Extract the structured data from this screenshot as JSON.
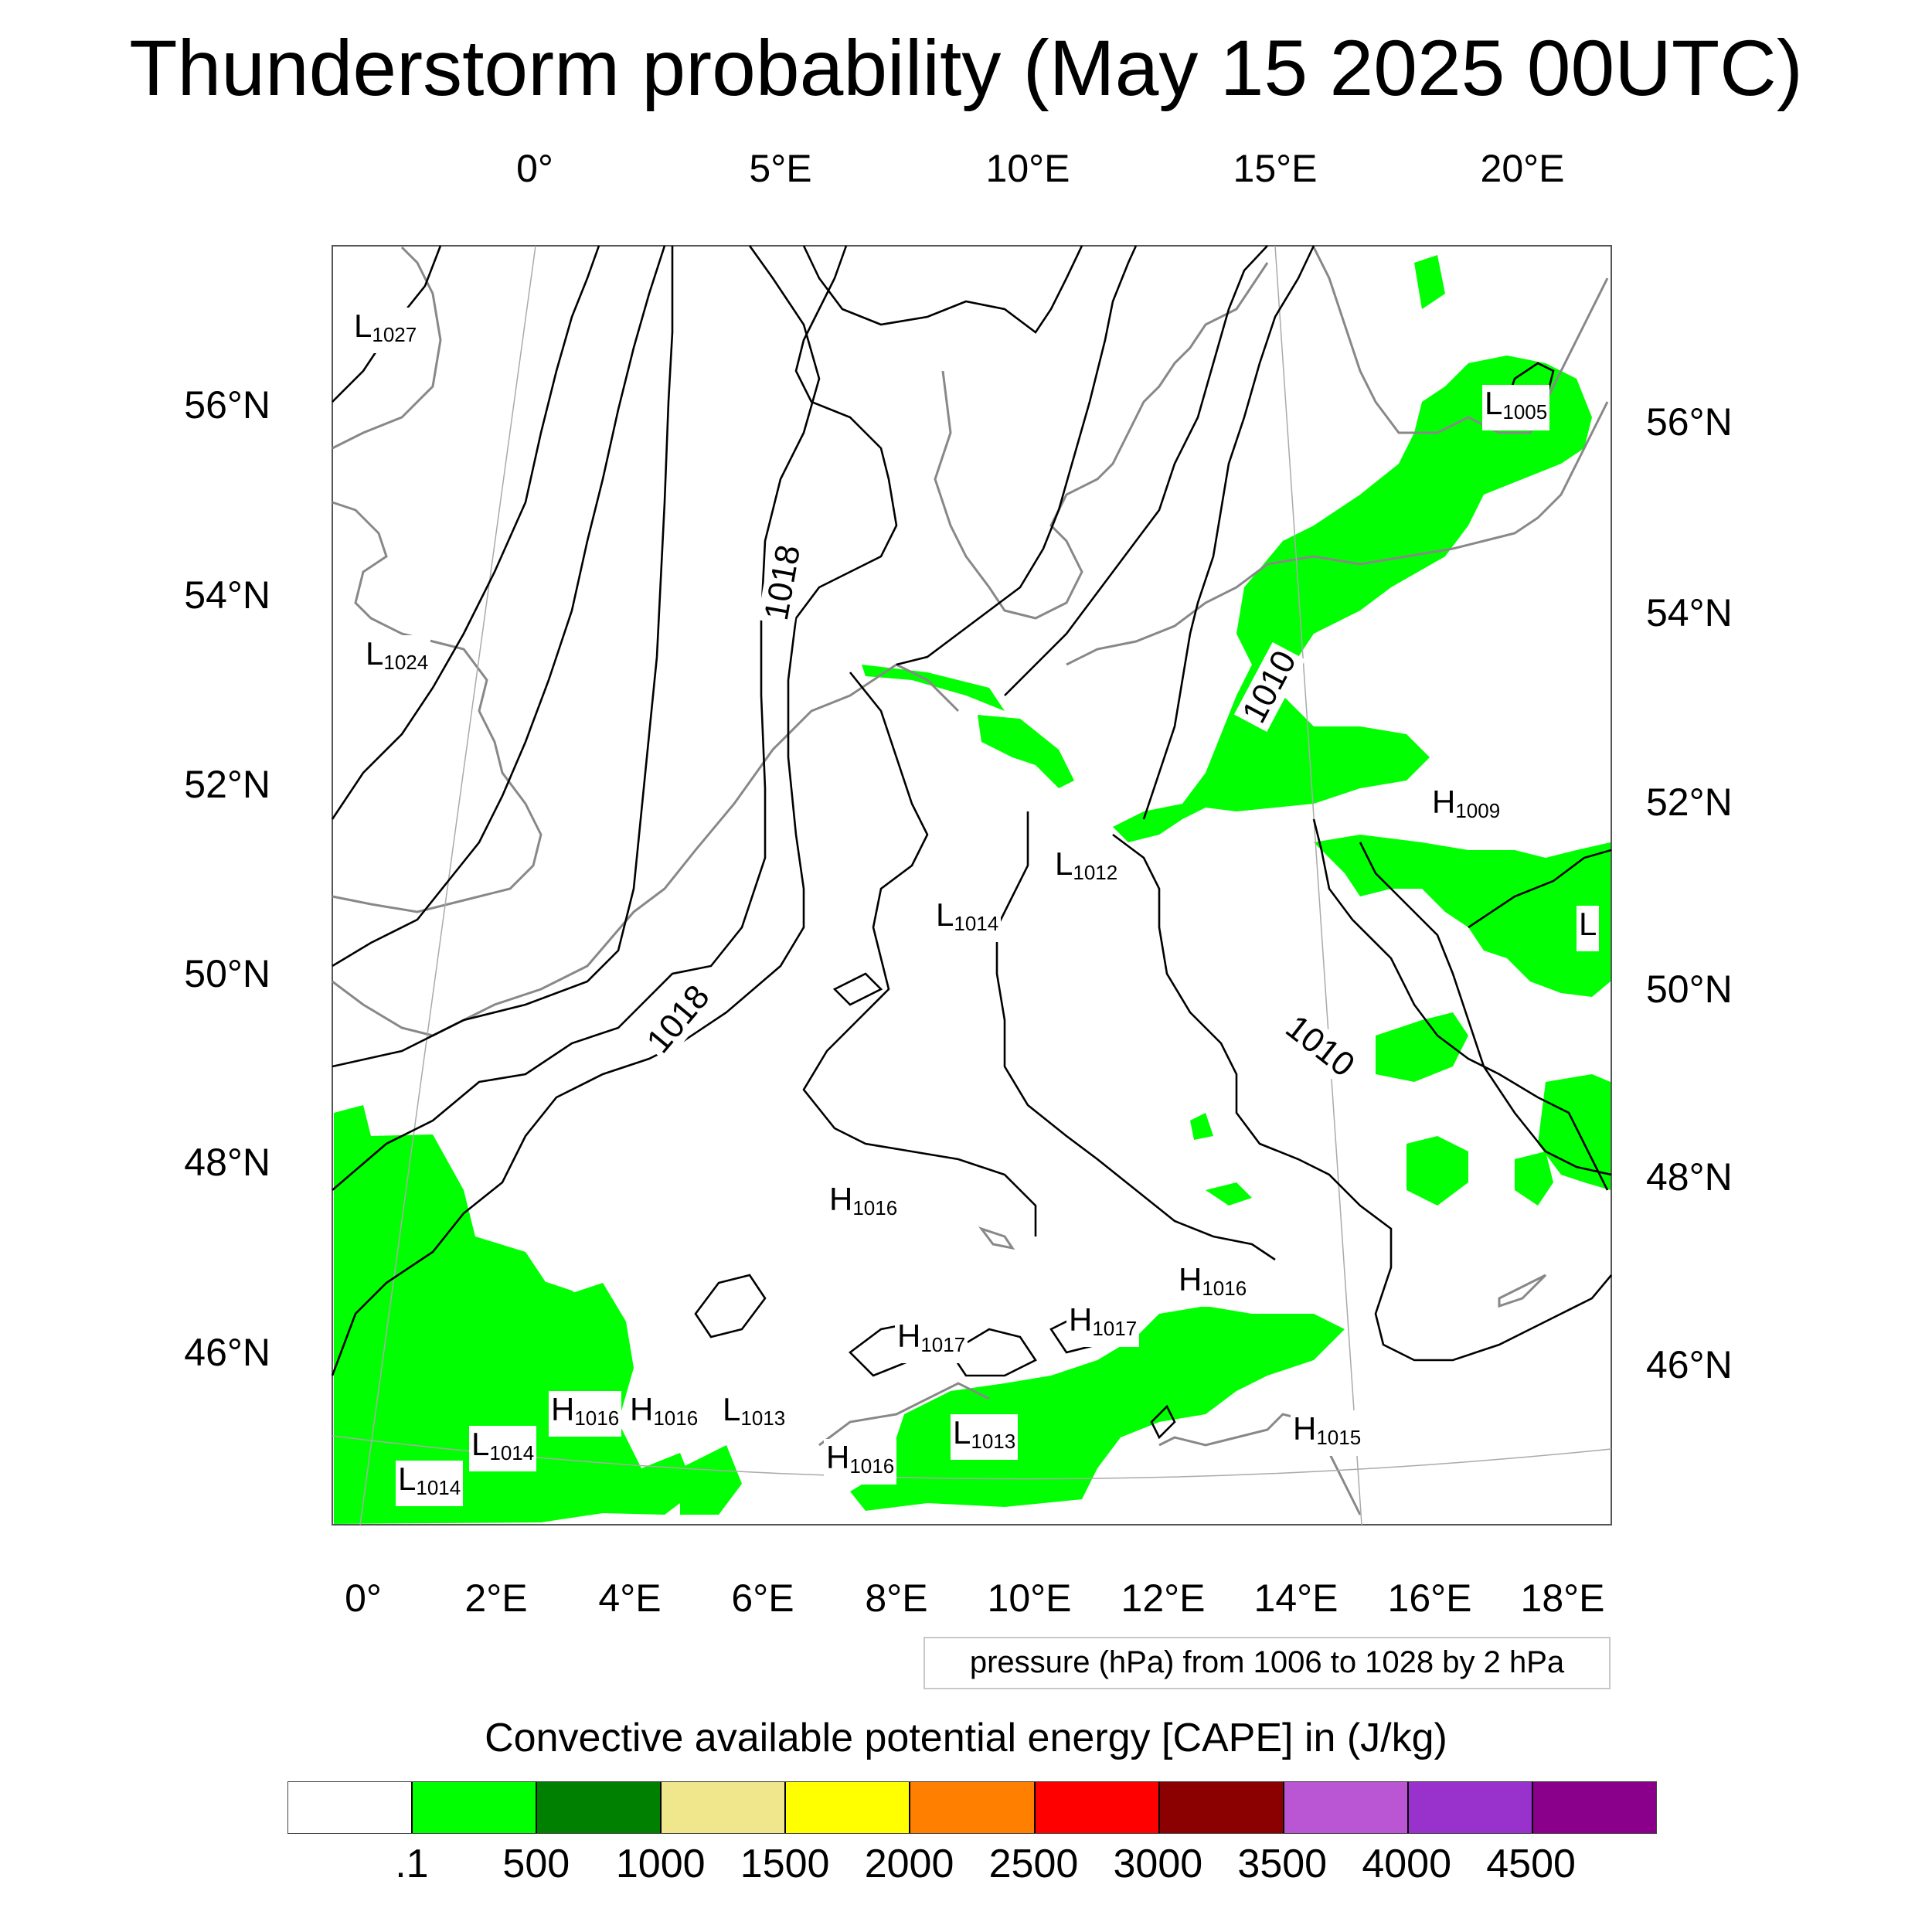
{
  "title": "Thunderstorm probability (May 15 2025 00UTC)",
  "top_axis_labels": [
    "0°",
    "5°E",
    "10°E",
    "15°E",
    "20°E"
  ],
  "bottom_axis_labels": [
    "0°",
    "2°E",
    "4°E",
    "6°E",
    "8°E",
    "10°E",
    "12°E",
    "14°E",
    "16°E",
    "18°E"
  ],
  "left_axis_labels": [
    "56°N",
    "54°N",
    "52°N",
    "50°N",
    "48°N",
    "46°N"
  ],
  "right_axis_labels": [
    "56°N",
    "54°N",
    "52°N",
    "50°N",
    "48°N",
    "46°N"
  ],
  "pressure_labels": [
    {
      "kind": "L",
      "value": "1027"
    },
    {
      "kind": "L",
      "value": "1024"
    },
    {
      "kind": "L",
      "value": "1005"
    },
    {
      "kind": "H",
      "value": "1009"
    },
    {
      "kind": "L",
      "value": "1012"
    },
    {
      "kind": "L",
      "value": "1014"
    },
    {
      "kind": "L",
      "value": ""
    },
    {
      "kind": "H",
      "value": "1016"
    },
    {
      "kind": "H",
      "value": "1016"
    },
    {
      "kind": "H",
      "value": "1017"
    },
    {
      "kind": "H",
      "value": "1017"
    },
    {
      "kind": "H",
      "value": "1016"
    },
    {
      "kind": "H",
      "value": "1016"
    },
    {
      "kind": "L",
      "value": "1013"
    },
    {
      "kind": "L",
      "value": "1013"
    },
    {
      "kind": "H",
      "value": "1016"
    },
    {
      "kind": "H",
      "value": "1015"
    },
    {
      "kind": "L",
      "value": "1014"
    },
    {
      "kind": "L",
      "value": "1014"
    }
  ],
  "contour_labels": [
    "1018",
    "1018",
    "1010",
    "1010"
  ],
  "pressure_note": "pressure (hPa) from 1006 to 1028 by 2 hPa",
  "colorbar": {
    "title": "Convective available potential energy [CAPE] in (J/kg)",
    "colors": [
      "#ffffff",
      "#00ff00",
      "#008000",
      "#f0e68c",
      "#ffff00",
      "#ff8000",
      "#ff0000",
      "#8b0000",
      "#ba55d3",
      "#9932cc",
      "#8b008b"
    ],
    "labels": [
      ".1",
      "500",
      "1000",
      "1500",
      "2000",
      "2500",
      "3000",
      "3500",
      "4000",
      "4500"
    ]
  }
}
